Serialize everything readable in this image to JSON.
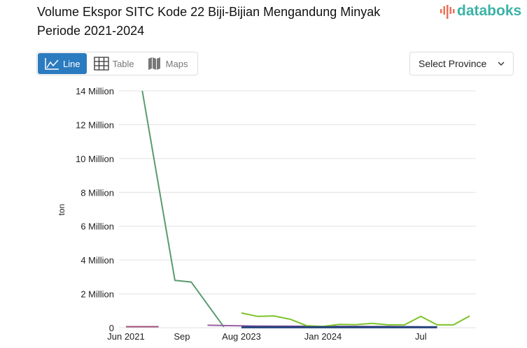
{
  "title": "Volume Ekspor SITC Kode 22 Biji-Bijian Mengandung Minyak Periode 2021-2024",
  "brand": "databoks",
  "view_tabs": [
    {
      "label": "Line",
      "icon": "line-chart-icon",
      "active": true
    },
    {
      "label": "Table",
      "icon": "table-icon"
    },
    {
      "label": "Maps",
      "icon": "map-icon"
    }
  ],
  "province_select": {
    "label": "Select Province",
    "icon": "chevron-down-icon"
  },
  "chart_data": {
    "type": "line",
    "ylabel": "ton",
    "ylim": [
      0,
      14000000
    ],
    "yticks": [
      0,
      2000000,
      4000000,
      6000000,
      8000000,
      10000000,
      12000000,
      14000000
    ],
    "ytick_labels": [
      "0",
      "2 Million",
      "4 Million",
      "6 Million",
      "8 Million",
      "10 Million",
      "12 Million",
      "14 Million"
    ],
    "categories": [
      "Jun 2021",
      "Jul 2021",
      "Aug 2021",
      "Sep 2021",
      "Oct 2021",
      "Nov 2021",
      "Dec 2021",
      "Aug 2023",
      "Sep 2023",
      "Oct 2023",
      "Nov 2023",
      "Dec 2023",
      "Jan 2024",
      "Feb 2024",
      "Mar 2024",
      "Apr 2024",
      "May 2024",
      "Jun 2024",
      "Jul 2024",
      "Aug 2024",
      "Sep 2024",
      "Oct 2024"
    ],
    "xtick_labels": {
      "0": "Jun 2021",
      "3": "Sep",
      "7": "Aug 2023",
      "12": "Jan 2024",
      "18": "Jul"
    },
    "grid": true,
    "series": [
      {
        "color": "#5a9a6e",
        "values": [
          null,
          14000000,
          null,
          2800000,
          2700000,
          null,
          50000,
          null,
          null,
          null,
          null,
          null,
          null,
          null,
          null,
          null,
          null,
          null,
          null,
          null,
          null,
          null
        ]
      },
      {
        "color": "#a0507a",
        "values": [
          60000,
          60000,
          60000,
          null,
          null,
          null,
          null,
          null,
          null,
          null,
          null,
          null,
          null,
          null,
          null,
          null,
          null,
          null,
          null,
          null,
          null,
          null
        ]
      },
      {
        "color": "#9a5fa8",
        "values": [
          null,
          null,
          null,
          null,
          null,
          150000,
          130000,
          110000,
          100000,
          95000,
          90000,
          85000,
          80000,
          80000,
          80000,
          75000,
          70000,
          60000,
          50000,
          null,
          null,
          null
        ]
      },
      {
        "color": "#7cc22a",
        "values": [
          null,
          null,
          null,
          null,
          null,
          null,
          null,
          870000,
          670000,
          700000,
          500000,
          120000,
          80000,
          200000,
          180000,
          260000,
          170000,
          170000,
          670000,
          170000,
          170000,
          700000
        ]
      },
      {
        "color": "#1f3f7a",
        "values": [
          null,
          null,
          null,
          null,
          null,
          null,
          null,
          30000,
          30000,
          30000,
          30000,
          30000,
          30000,
          30000,
          30000,
          30000,
          30000,
          30000,
          30000,
          30000,
          null,
          null
        ]
      }
    ]
  }
}
